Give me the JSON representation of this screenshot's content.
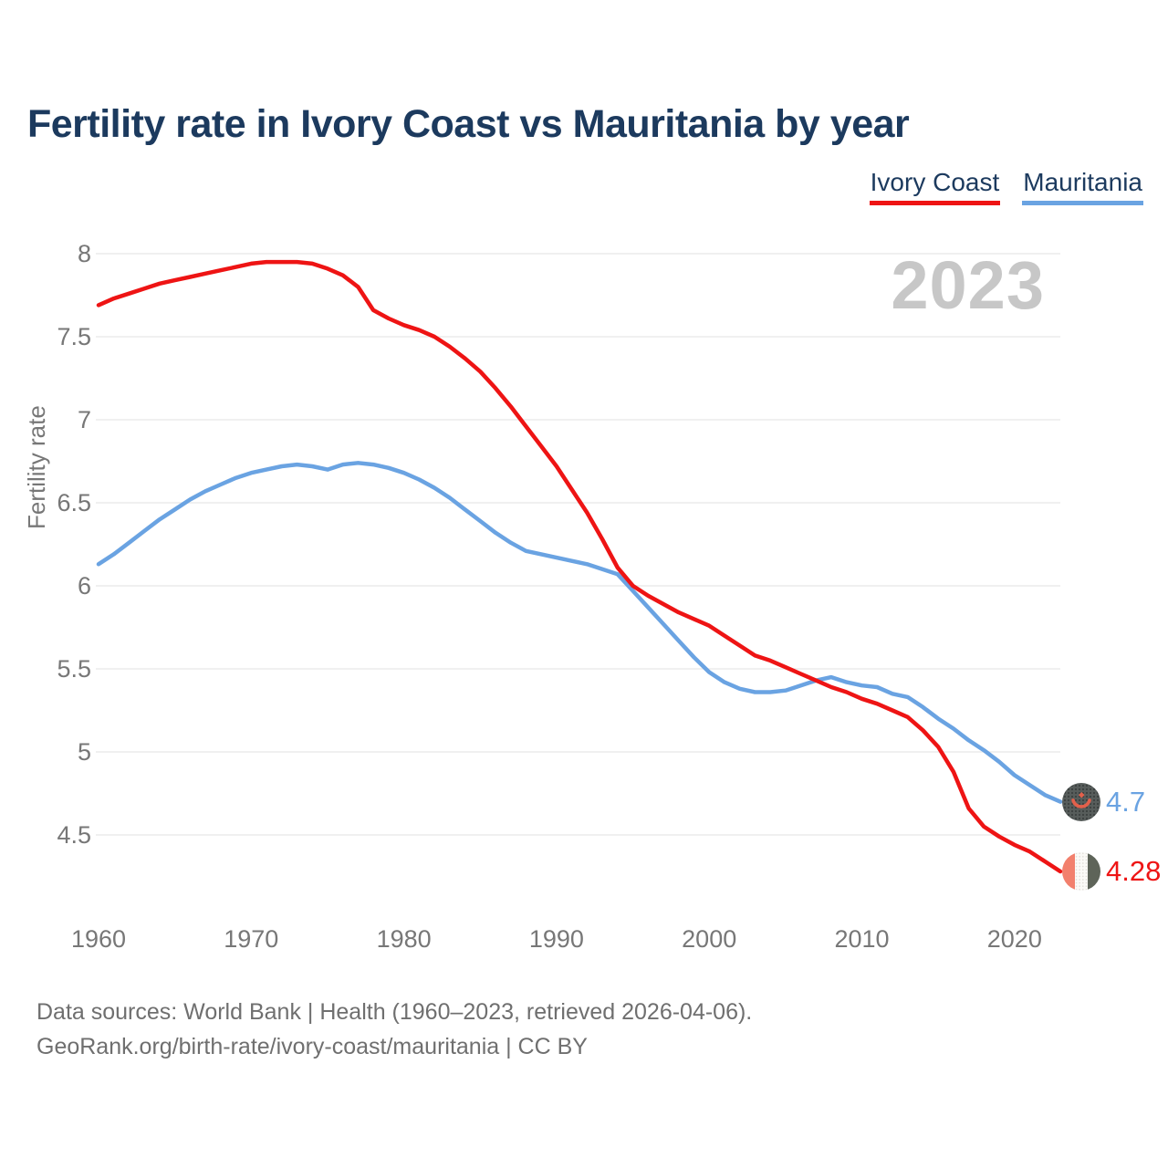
{
  "header": {
    "title": "Fertility rate in Ivory Coast vs Mauritania by year"
  },
  "legend": [
    {
      "label": "Ivory Coast",
      "color": "#ee1414"
    },
    {
      "label": "Mauritania",
      "color": "#6aa3e2"
    }
  ],
  "watermark": "2023",
  "colors": {
    "ivory_coast": "#ee1414",
    "mauritania": "#6aa3e2",
    "title_text": "#1c3a5e",
    "axis_text": "#777777",
    "gridline": "#ececec",
    "watermark": "#c7c7c7",
    "footer_text": "#6f6f6f"
  },
  "chart_data": {
    "type": "line",
    "title": "Fertility rate in Ivory Coast vs Mauritania by year",
    "xlabel": "",
    "y_axis_title": "Fertility rate",
    "x_range": [
      1960,
      2023
    ],
    "ylim": [
      4.1,
      8.15
    ],
    "x_ticks": [
      1960,
      1970,
      1980,
      1990,
      2000,
      2010,
      2020
    ],
    "y_ticks": [
      4.5,
      5,
      5.5,
      6,
      6.5,
      7,
      7.5,
      8
    ],
    "grid": "horizontal",
    "legend_position": "top-right",
    "series": [
      {
        "name": "Ivory Coast",
        "color": "#ee1414",
        "end_label": "4.28",
        "end_value": 4.28,
        "values": [
          7.69,
          7.73,
          7.76,
          7.79,
          7.82,
          7.84,
          7.86,
          7.88,
          7.9,
          7.92,
          7.94,
          7.95,
          7.95,
          7.95,
          7.94,
          7.91,
          7.87,
          7.8,
          7.66,
          7.61,
          7.57,
          7.54,
          7.5,
          7.44,
          7.37,
          7.29,
          7.19,
          7.08,
          6.96,
          6.84,
          6.72,
          6.58,
          6.44,
          6.28,
          6.11,
          6.0,
          5.94,
          5.89,
          5.84,
          5.8,
          5.76,
          5.7,
          5.64,
          5.58,
          5.55,
          5.51,
          5.47,
          5.43,
          5.39,
          5.36,
          5.32,
          5.29,
          5.25,
          5.21,
          5.13,
          5.03,
          4.88,
          4.66,
          4.55,
          4.49,
          4.44,
          4.4,
          4.34,
          4.28
        ]
      },
      {
        "name": "Mauritania",
        "color": "#6aa3e2",
        "end_label": "4.7",
        "end_value": 4.7,
        "values": [
          6.13,
          6.19,
          6.26,
          6.33,
          6.4,
          6.46,
          6.52,
          6.57,
          6.61,
          6.65,
          6.68,
          6.7,
          6.72,
          6.73,
          6.72,
          6.7,
          6.73,
          6.74,
          6.73,
          6.71,
          6.68,
          6.64,
          6.59,
          6.53,
          6.46,
          6.39,
          6.32,
          6.26,
          6.21,
          6.19,
          6.17,
          6.15,
          6.13,
          6.1,
          6.07,
          5.97,
          5.87,
          5.77,
          5.67,
          5.57,
          5.48,
          5.42,
          5.38,
          5.36,
          5.36,
          5.37,
          5.4,
          5.43,
          5.45,
          5.42,
          5.4,
          5.39,
          5.35,
          5.33,
          5.27,
          5.2,
          5.14,
          5.07,
          5.01,
          4.94,
          4.86,
          4.8,
          4.74,
          4.7
        ]
      }
    ]
  },
  "footer": {
    "line1": "Data sources: World Bank | Health (1960–2023, retrieved 2026-04-06).",
    "line2": "GeoRank.org/birth-rate/ivory-coast/mauritania | CC BY"
  }
}
